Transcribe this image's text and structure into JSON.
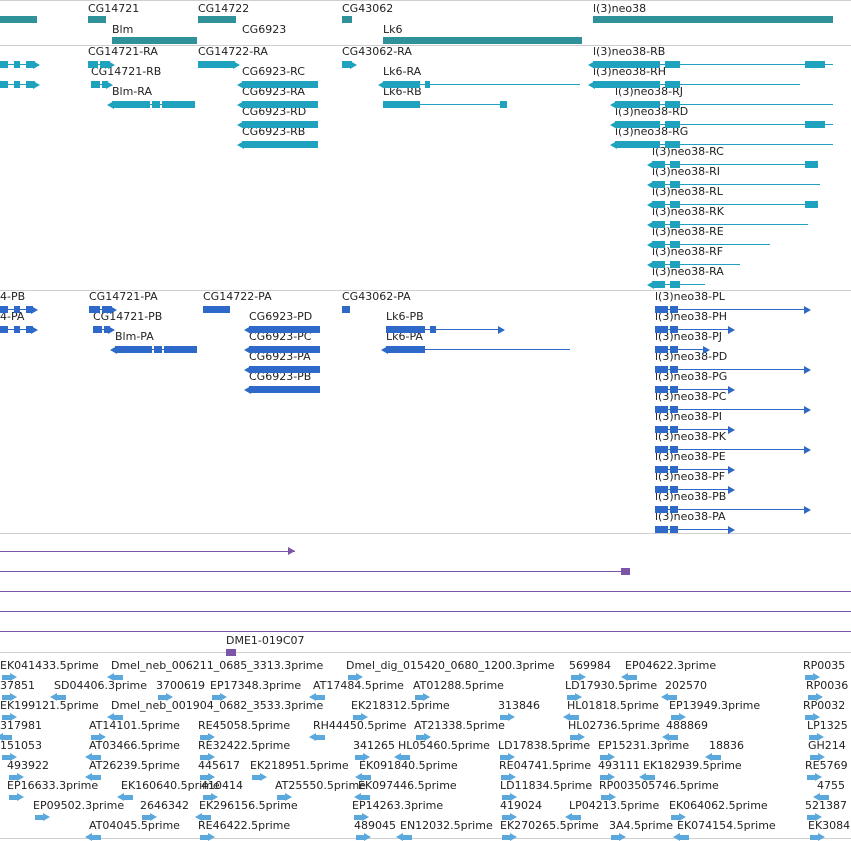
{
  "colors": {
    "gene": "#2f9199",
    "transcript_a": "#1ea2bd",
    "transcript_b": "#2e68c8",
    "clone": "#7a55a8",
    "est": "#5ba8dd"
  },
  "gene_track": {
    "genes": [
      "CG14721",
      "CG14722",
      "CG6923",
      "CG43062",
      "Lk6",
      "l(3)neo38",
      "Blm"
    ]
  },
  "transcript_track_a": {
    "labels": [
      "CG14721-RA",
      "CG14721-RB",
      "Blm-RA",
      "CG14722-RA",
      "CG6923-RC",
      "CG6923-RA",
      "CG6923-RD",
      "CG6923-RB",
      "CG43062-RA",
      "Lk6-RA",
      "Lk6-RB",
      "l(3)neo38-RB",
      "l(3)neo38-RH",
      "l(3)neo38-RJ",
      "l(3)neo38-RD",
      "l(3)neo38-RG",
      "l(3)neo38-RC",
      "l(3)neo38-RI",
      "l(3)neo38-RL",
      "l(3)neo38-RK",
      "l(3)neo38-RE",
      "l(3)neo38-RF",
      "l(3)neo38-RA"
    ]
  },
  "transcript_track_b": {
    "labels": [
      "4-PB",
      "4-PA",
      "CG14721-PA",
      "CG14721-PB",
      "Blm-PA",
      "CG14722-PA",
      "CG6923-PD",
      "CG6923-PC",
      "CG6923-PA",
      "CG6923-PB",
      "CG43062-PA",
      "Lk6-PB",
      "Lk6-PA",
      "l(3)neo38-PL",
      "l(3)neo38-PH",
      "l(3)neo38-PJ",
      "l(3)neo38-PD",
      "l(3)neo38-PG",
      "l(3)neo38-PC",
      "l(3)neo38-PI",
      "l(3)neo38-PK",
      "l(3)neo38-PE",
      "l(3)neo38-PF",
      "l(3)neo38-PB",
      "l(3)neo38-PA"
    ]
  },
  "clone_track": {
    "labels": [
      "DME1-019C07"
    ]
  },
  "est_track": {
    "labels": [
      "EK041433.5prime",
      "Dmel_neb_006211_0685_3313.3prime",
      "Dmel_dig_015420_0680_1200.3prime",
      "569984",
      "EP04622.3prime",
      "RP0035",
      "37851",
      "SD04406.3prime",
      "3700619",
      "EP17348.3prime",
      "AT17484.5prime",
      "AT01288.5prime",
      "LD17930.5prime",
      "202570",
      "RP0036",
      "EK199121.5prime",
      "Dmel_neb_001904_0682_3533.3prime",
      "EK218312.5prime",
      "313846",
      "HL01818.5prime",
      "EP13949.3prime",
      "RP0032",
      "317981",
      "AT14101.5prime",
      "RE45058.5prime",
      "RH44450.5prime",
      "AT21338.5prime",
      "HL02736.5prime",
      "488869",
      "LP1325",
      "151053",
      "AT03466.5prime",
      "RE32422.5prime",
      "341265",
      "HL05460.5prime",
      "LD17838.5prime",
      "EP15231.3prime",
      "18836",
      "GH214",
      "493922",
      "AT26239.5prime",
      "445617",
      "EK218951.5prime",
      "EK091840.5prime",
      "RE04741.5prime",
      "493111",
      "EK182939.5prime",
      "RE5769",
      "EP16633.3prime",
      "EK160640.5prime",
      "410414",
      "AT25550.5prime",
      "EK097446.5prime",
      "LD11834.5prime",
      "RP003505746.5prime",
      "4755",
      "EP09502.3prime",
      "2646342",
      "EK296156.5prime",
      "EP14263.3prime",
      "419024",
      "LP04213.5prime",
      "EK064062.5prime",
      "521387",
      "AT04045.5prime",
      "RE46422.5prime",
      "489045",
      "EN12032.5prime",
      "EK270265.5prime",
      "3A4.5prime",
      "EK074154.5prime",
      "EK3084"
    ]
  }
}
